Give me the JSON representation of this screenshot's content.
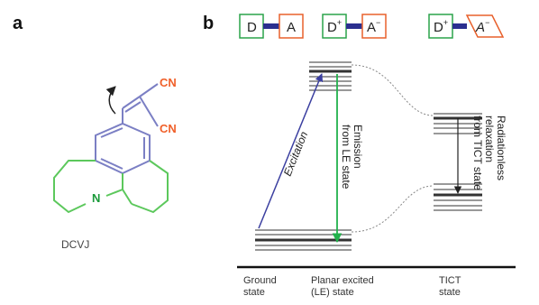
{
  "panel_a": {
    "label": "a",
    "substituent_top": "CN",
    "substituent_bottom": "CN",
    "nitrogen": "N",
    "molecule_name": "DCVJ"
  },
  "panel_b": {
    "label": "b",
    "box_d": "D",
    "box_a": "A",
    "box_d_plus": "D",
    "box_d_plus_sup": "+",
    "box_a_minus": "A",
    "box_a_minus_sup": "−",
    "box_d_plus_3": "D",
    "box_d_plus_3_sup": "+",
    "box_a_minus_3": "A",
    "box_a_minus_3_sup": "−",
    "excitation": "Excitation",
    "emission_line1": "Emission",
    "emission_line2": "from LE state",
    "relax_line1": "Radiationless",
    "relax_line2": "relaxation",
    "relax_line3": "from TICT state",
    "ground_line1": "Ground",
    "ground_line2": "state",
    "planar_line1": "Planar excited",
    "planar_line2": "(LE) state",
    "tict_line1": "TICT",
    "tict_line2": "state"
  },
  "colors": {
    "donor_box": "#2aa34a",
    "acceptor_box": "#e8602c",
    "linker": "#2b2f8f",
    "ring_upper": "#7b7fc4",
    "ring_lower": "#5cc85c",
    "nitrogen": "#1a9a3a",
    "cn": "#f0602a",
    "excitation_arrow": "#3b3fa0",
    "emission_arrow": "#22b14c"
  }
}
